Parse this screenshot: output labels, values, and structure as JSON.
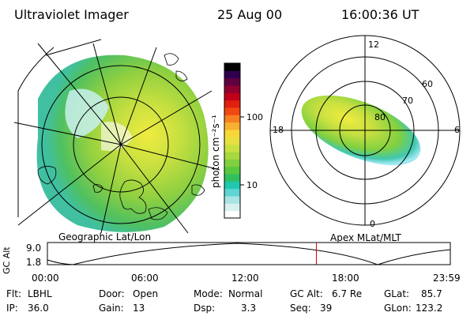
{
  "header": {
    "instrument": "Ultraviolet Imager",
    "date": "25 Aug 00",
    "time": "16:00:36 UT"
  },
  "colorbar": {
    "ticks": [
      "100",
      "10"
    ],
    "unit_label": "photon cm⁻²s⁻¹",
    "colors": [
      "#ffffff",
      "#d8f0f0",
      "#a8e4e4",
      "#60d4d4",
      "#20c8b0",
      "#30c060",
      "#58c840",
      "#80d040",
      "#a8d840",
      "#c8e040",
      "#e8e040",
      "#f8d838",
      "#f8b030",
      "#f88020",
      "#f04810",
      "#e02010",
      "#c00018",
      "#900030",
      "#600040",
      "#300050",
      "#000000"
    ]
  },
  "left_map": {
    "label": "Geographic Lat/Lon"
  },
  "right_map": {
    "label": "Apex MLat/MLT",
    "lat_labels": [
      "80",
      "70",
      "60"
    ],
    "mlt_labels": {
      "top": "12",
      "bottom": "0",
      "left": "18",
      "right": "6"
    }
  },
  "altitude_plot": {
    "ylabel": "GC Alt",
    "yticks": [
      "9.0",
      "1.8"
    ],
    "xticks": [
      "00:00",
      "06:00",
      "12:00",
      "18:00",
      "23:59"
    ],
    "current_marker_hour": 16.01
  },
  "info": {
    "row1": [
      {
        "label": "Flt:",
        "value": "LBHL"
      },
      {
        "label": "Door:",
        "value": "Open"
      },
      {
        "label": "Mode:",
        "value": "Normal"
      },
      {
        "label": "GC Alt:",
        "value": "6.7 Re"
      },
      {
        "label": "GLat:",
        "value": "85.7"
      }
    ],
    "row2": [
      {
        "label": "IP:",
        "value": "36.0"
      },
      {
        "label": "Gain:",
        "value": "13"
      },
      {
        "label": "Dsp:",
        "value": "3.3"
      },
      {
        "label": "Seq:",
        "value": "39"
      },
      {
        "label": "GLon:",
        "value": "123.2"
      }
    ]
  }
}
